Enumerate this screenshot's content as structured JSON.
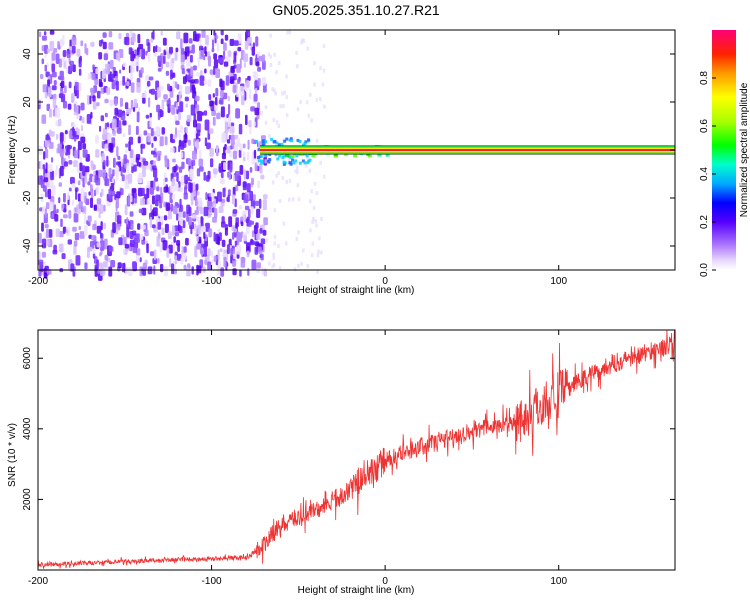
{
  "title": "GN05.2025.351.10.27.R21",
  "chart_data": [
    {
      "type": "heatmap",
      "xlabel": "Height of straight line (km)",
      "ylabel": "Frequency (Hz)",
      "xlim": [
        -200,
        167
      ],
      "ylim": [
        -50,
        50
      ],
      "x_ticks": [
        -200,
        -100,
        0,
        100
      ],
      "y_ticks": [
        -40,
        -20,
        0,
        20,
        40
      ],
      "colorbar": {
        "label": "Normalized spectral amplitude",
        "range": [
          0,
          1
        ],
        "ticks": [
          0.0,
          0.2,
          0.4,
          0.6,
          0.8
        ]
      },
      "features": {
        "noise_region_x": [
          -200,
          -70
        ],
        "carrier_frequency_hz": 0,
        "carrier_start_x": -75
      }
    },
    {
      "type": "line",
      "xlabel": "Height of straight line (km)",
      "ylabel": "SNR (10 * v/v)",
      "xlim": [
        -200,
        167
      ],
      "ylim": [
        0,
        6800
      ],
      "x_ticks": [
        -200,
        -100,
        0,
        100
      ],
      "y_ticks": [
        2000,
        4000,
        6000
      ],
      "color": "#ee3333",
      "series": [
        {
          "x": [
            -200,
            -180,
            -160,
            -140,
            -120,
            -100,
            -80,
            -70,
            -60,
            -50,
            -40,
            -30,
            -20,
            -10,
            0,
            10,
            20,
            30,
            40,
            50,
            60,
            70,
            80,
            90,
            100,
            110,
            120,
            130,
            140,
            150,
            160,
            167
          ],
          "values": [
            150,
            180,
            220,
            260,
            290,
            320,
            350,
            700,
            1300,
            1500,
            1700,
            1900,
            2300,
            2700,
            3100,
            3300,
            3500,
            3650,
            3800,
            3950,
            4050,
            4150,
            4300,
            4700,
            5000,
            5300,
            5600,
            5800,
            6000,
            6150,
            6300,
            6450
          ]
        }
      ]
    }
  ]
}
